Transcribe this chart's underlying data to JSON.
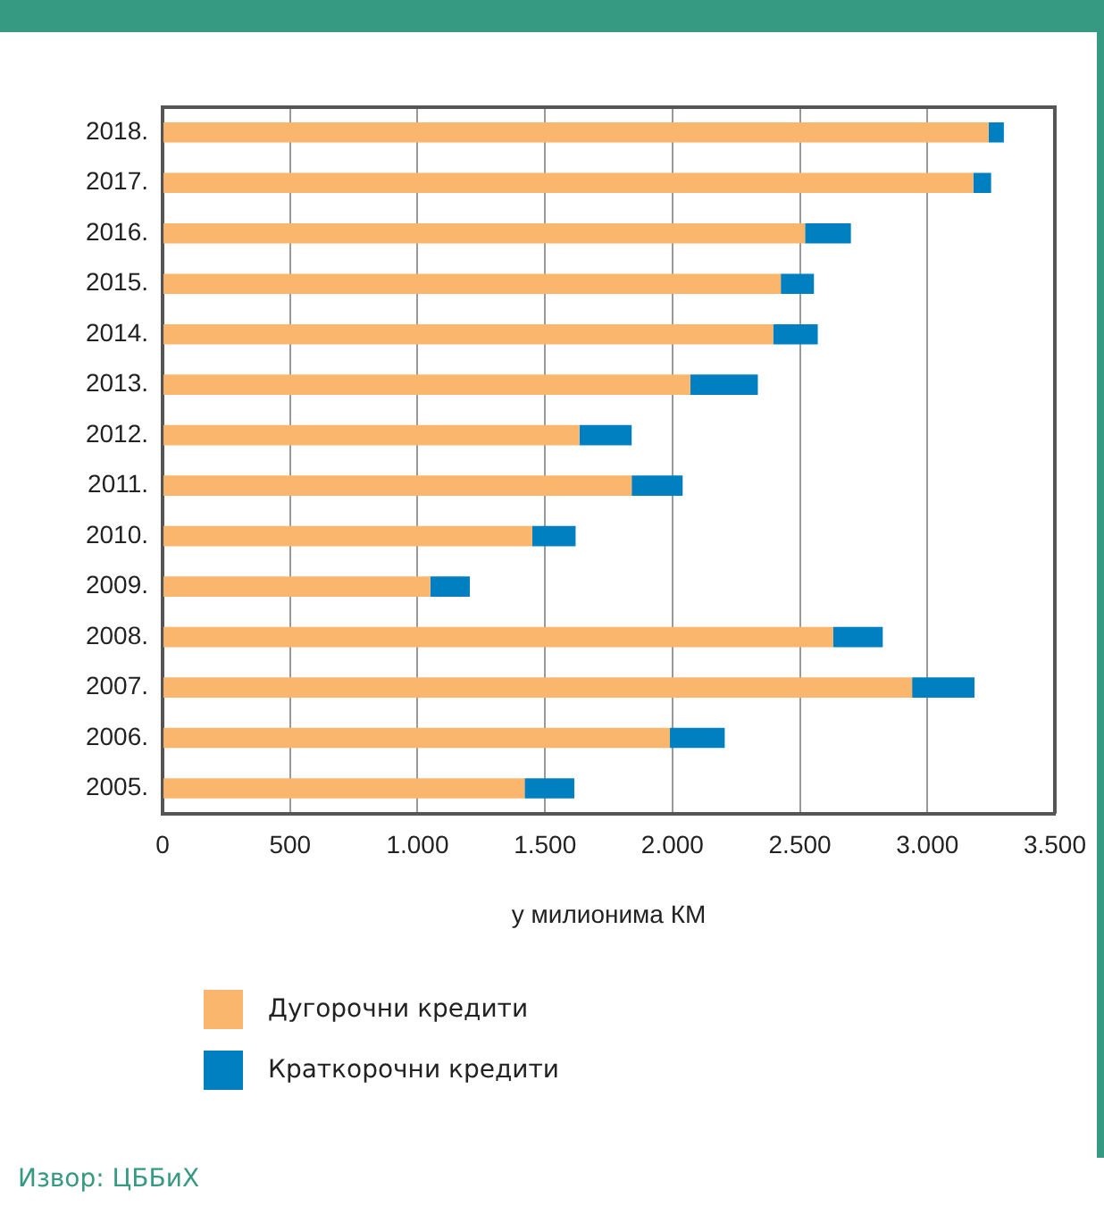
{
  "chart_data": {
    "type": "bar",
    "orientation": "horizontal",
    "stacked": true,
    "categories": [
      "2018.",
      "2017.",
      "2016.",
      "2015.",
      "2014.",
      "2013.",
      "2012.",
      "2011.",
      "2010.",
      "2009.",
      "2008.",
      "2007.",
      "2006.",
      "2005."
    ],
    "series": [
      {
        "name": "Дугорочни кредити",
        "color": "#fab66c",
        "values": [
          3240,
          3180,
          2520,
          2425,
          2395,
          2070,
          1635,
          1840,
          1450,
          1050,
          2630,
          2940,
          1990,
          1420
        ]
      },
      {
        "name": "Краткорочни кредити",
        "color": "#0080c0",
        "values": [
          60,
          70,
          180,
          130,
          175,
          265,
          205,
          200,
          170,
          155,
          195,
          245,
          215,
          195
        ]
      }
    ],
    "xlabel": "у милионима КМ",
    "xlim": [
      0,
      3500
    ],
    "xticks": [
      0,
      500,
      {
        "value": 1000,
        "label": "1.000"
      },
      {
        "value": 1500,
        "label": "1.500"
      },
      {
        "value": 2000,
        "label": "2.000"
      },
      {
        "value": 2500,
        "label": "2.500"
      },
      {
        "value": 3000,
        "label": "3.000"
      },
      {
        "value": 3500,
        "label": "3.500"
      }
    ],
    "grid": "x",
    "legend": "bottom",
    "annotations": [
      "Извор: ЦББиХ"
    ]
  }
}
